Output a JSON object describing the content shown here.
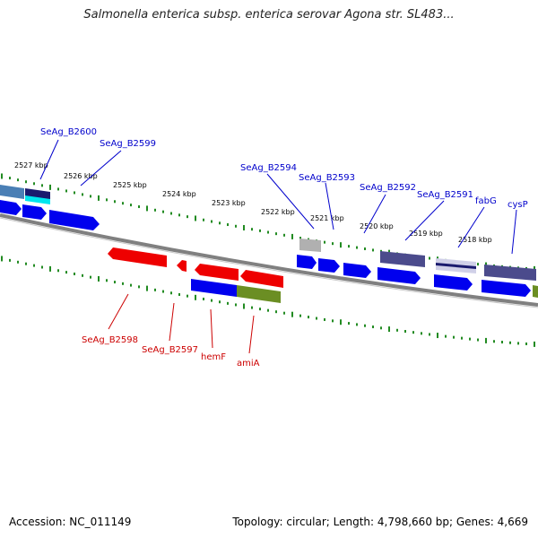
{
  "title": "Salmonella enterica subsp. enterica serovar Agona str. SL483...",
  "footer": {
    "accession": "Accession: NC_011149",
    "summary": "Topology: circular; Length: 4,798,660 bp; Genes: 4,669"
  },
  "colors": {
    "backbone": "#808080",
    "forward_label": "#0000cc",
    "reverse_label": "#cc0000",
    "tick": "#228b22",
    "blue_cds": "#0000ee",
    "red_cds": "#ee0000",
    "olive_cds": "#6b8e23",
    "slate_cds": "#4b4b8c",
    "grey_cds": "#b0b0b0",
    "steel_cds": "#4a7fb5",
    "cyan_cds": "#00e5ee"
  },
  "scale": {
    "unit": "kbp",
    "ticks": [
      "2527 kbp",
      "2526 kbp",
      "2525 kbp",
      "2524 kbp",
      "2523 kbp",
      "2522 kbp",
      "2521 kbp",
      "2520 kbp",
      "2519 kbp",
      "2518 kbp"
    ]
  },
  "forward_genes": [
    {
      "name": "SeAg_B2600"
    },
    {
      "name": "SeAg_B2599"
    },
    {
      "name": "SeAg_B2594"
    },
    {
      "name": "SeAg_B2593"
    },
    {
      "name": "SeAg_B2592"
    },
    {
      "name": "SeAg_B2591"
    },
    {
      "name": "fabG"
    },
    {
      "name": "cysP"
    }
  ],
  "reverse_genes": [
    {
      "name": "SeAg_B2598"
    },
    {
      "name": "SeAg_B2597"
    },
    {
      "name": "hemF"
    },
    {
      "name": "amiA"
    }
  ]
}
